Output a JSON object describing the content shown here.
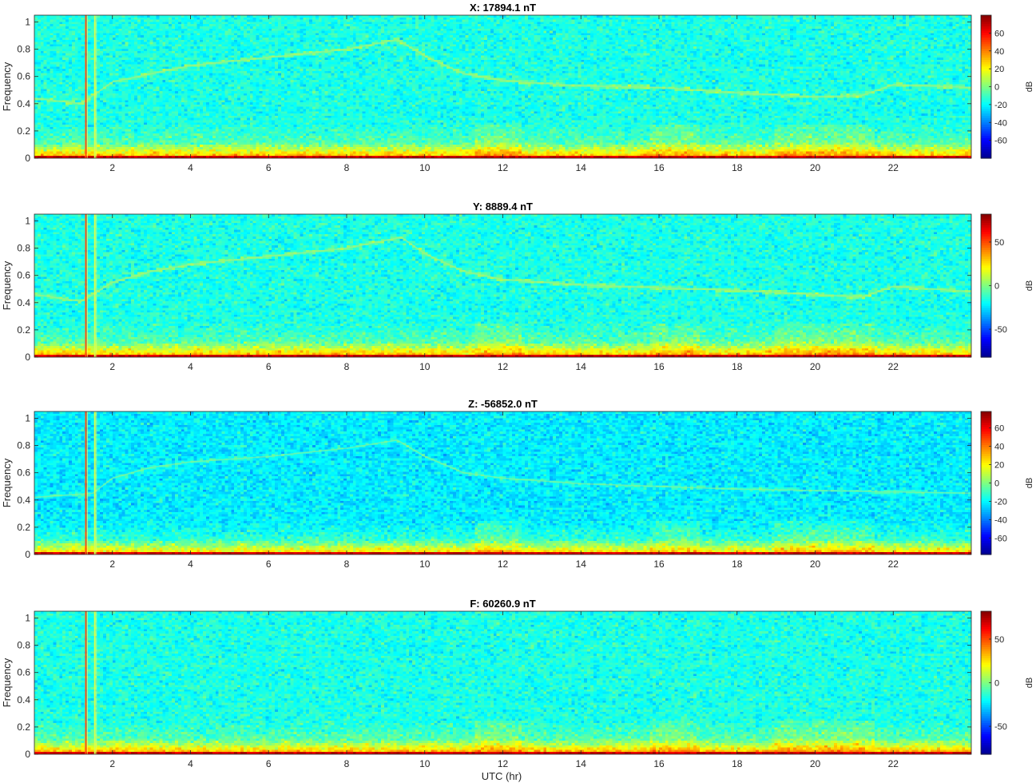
{
  "figure": {
    "xlabel": "UTC (hr)"
  },
  "colors": {
    "colormap": [
      "#00008f",
      "#0000ff",
      "#0080ff",
      "#00ffff",
      "#80ff80",
      "#ffff00",
      "#ff8000",
      "#ff0000",
      "#800000"
    ],
    "background": "#ffffff",
    "axis": "#262626"
  },
  "chart_data": [
    {
      "type": "heatmap",
      "title": "X: 17894.1 nT",
      "xlabel": "",
      "ylabel": "Frequency",
      "xlim": [
        0,
        24
      ],
      "ylim": [
        0,
        1.05
      ],
      "xticks": [
        2,
        4,
        6,
        8,
        10,
        12,
        14,
        16,
        18,
        20,
        22
      ],
      "yticks": [
        0,
        0.2,
        0.4,
        0.6,
        0.8,
        1
      ],
      "colorbar": {
        "label": "dB",
        "clim": [
          -80,
          80
        ],
        "ticks": [
          -60,
          -40,
          -20,
          0,
          20,
          40,
          60
        ]
      },
      "tone_line": [
        [
          0,
          0.44
        ],
        [
          1.2,
          0.4
        ],
        [
          1.5,
          0.46
        ],
        [
          2,
          0.56
        ],
        [
          3,
          0.62
        ],
        [
          4,
          0.68
        ],
        [
          6,
          0.74
        ],
        [
          8,
          0.8
        ],
        [
          9.3,
          0.87
        ],
        [
          10,
          0.75
        ],
        [
          11,
          0.62
        ],
        [
          12,
          0.57
        ],
        [
          14,
          0.53
        ],
        [
          16,
          0.52
        ],
        [
          18,
          0.48
        ],
        [
          20,
          0.45
        ],
        [
          21.2,
          0.46
        ],
        [
          22,
          0.54
        ],
        [
          24,
          0.52
        ]
      ],
      "tone_strength": 0.75,
      "spikes": [
        1.32,
        1.55
      ],
      "noise_bands": [
        [
          11.3,
          12.5
        ],
        [
          15.8,
          17.0
        ],
        [
          19.0,
          21.5
        ]
      ]
    },
    {
      "type": "heatmap",
      "title": "Y: 8889.4 nT",
      "xlabel": "",
      "ylabel": "Frequency",
      "xlim": [
        0,
        24
      ],
      "ylim": [
        0,
        1.05
      ],
      "xticks": [
        2,
        4,
        6,
        8,
        10,
        12,
        14,
        16,
        18,
        20,
        22
      ],
      "yticks": [
        0,
        0.2,
        0.4,
        0.6,
        0.8,
        1
      ],
      "colorbar": {
        "label": "dB",
        "clim": [
          -82,
          82
        ],
        "ticks": [
          -50,
          0,
          50
        ]
      },
      "tone_line": [
        [
          0,
          0.46
        ],
        [
          1.2,
          0.41
        ],
        [
          1.5,
          0.46
        ],
        [
          2,
          0.55
        ],
        [
          3,
          0.63
        ],
        [
          4,
          0.68
        ],
        [
          6,
          0.74
        ],
        [
          8,
          0.8
        ],
        [
          9.4,
          0.88
        ],
        [
          10,
          0.76
        ],
        [
          11,
          0.63
        ],
        [
          12,
          0.57
        ],
        [
          14,
          0.53
        ],
        [
          16,
          0.51
        ],
        [
          18,
          0.49
        ],
        [
          20,
          0.46
        ],
        [
          21.2,
          0.44
        ],
        [
          22,
          0.52
        ],
        [
          24,
          0.48
        ]
      ],
      "tone_strength": 0.75,
      "spikes": [
        1.32,
        1.55
      ],
      "noise_bands": [
        [
          11.3,
          12.5
        ],
        [
          15.8,
          17.0
        ],
        [
          19.0,
          21.5
        ]
      ]
    },
    {
      "type": "heatmap",
      "title": "Z: -56852.0 nT",
      "xlabel": "",
      "ylabel": "Frequency",
      "xlim": [
        0,
        24
      ],
      "ylim": [
        0,
        1.05
      ],
      "xticks": [
        2,
        4,
        6,
        8,
        10,
        12,
        14,
        16,
        18,
        20,
        22
      ],
      "yticks": [
        0,
        0.2,
        0.4,
        0.6,
        0.8,
        1
      ],
      "colorbar": {
        "label": "dB",
        "clim": [
          -78,
          78
        ],
        "ticks": [
          -60,
          -40,
          -20,
          0,
          20,
          40,
          60
        ]
      },
      "tone_line": [
        [
          0,
          0.42
        ],
        [
          1.5,
          0.45
        ],
        [
          2,
          0.56
        ],
        [
          3,
          0.64
        ],
        [
          4,
          0.68
        ],
        [
          6,
          0.72
        ],
        [
          8,
          0.78
        ],
        [
          9.3,
          0.84
        ],
        [
          10,
          0.72
        ],
        [
          11,
          0.6
        ],
        [
          12,
          0.56
        ],
        [
          14,
          0.52
        ],
        [
          16,
          0.5
        ],
        [
          18,
          0.48
        ],
        [
          24,
          0.45
        ]
      ],
      "tone_strength": 0.35,
      "spikes": [
        1.32,
        1.55
      ],
      "noise_bands": [
        [
          11.3,
          12.5
        ],
        [
          15.8,
          17.0
        ],
        [
          19.0,
          21.5
        ]
      ]
    },
    {
      "type": "heatmap",
      "title": "F: 60260.9 nT",
      "xlabel": "UTC (hr)",
      "ylabel": "Frequency",
      "xlim": [
        0,
        24
      ],
      "ylim": [
        0,
        1.05
      ],
      "xticks": [
        2,
        4,
        6,
        8,
        10,
        12,
        14,
        16,
        18,
        20,
        22
      ],
      "yticks": [
        0,
        0.2,
        0.4,
        0.6,
        0.8,
        1
      ],
      "colorbar": {
        "label": "dB",
        "clim": [
          -82,
          82
        ],
        "ticks": [
          -50,
          0,
          50
        ]
      },
      "tone_line": [],
      "tone_strength": 0,
      "spikes": [
        1.32,
        1.55
      ],
      "noise_bands": [
        [
          11.3,
          12.5
        ],
        [
          15.8,
          17.0
        ],
        [
          19.0,
          21.5
        ]
      ]
    }
  ]
}
